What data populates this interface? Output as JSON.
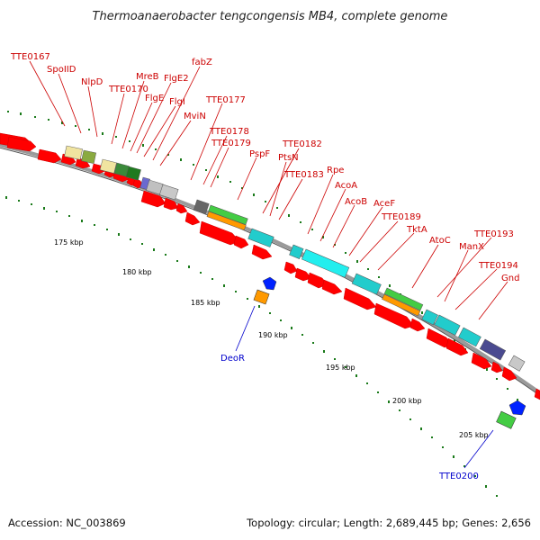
{
  "title": "Thermoanaerobacter tengcongensis MB4, complete genome",
  "footer": {
    "accession": "Accession: NC_003869",
    "topology": "Topology: circular; Length: 2,689,445 bp; Genes: 2,656"
  },
  "colors": {
    "forward": "#ff0000",
    "label_red": "#cc0000",
    "label_blue": "#0000cc",
    "backbone": "#808080",
    "tick": "#1a7a1a"
  },
  "kbp_labels": [
    "175 kbp",
    "180 kbp",
    "185 kbp",
    "190 kbp",
    "195 kbp",
    "200 kbp",
    "205 kbp"
  ],
  "gene_labels": [
    "TTE0167",
    "SpoIID",
    "NlpD",
    "TTE0170",
    "MreB",
    "FlgE2",
    "FlgE",
    "FlgI",
    "fabZ",
    "MviN",
    "TTE0177",
    "TTE0178",
    "TTE0179",
    "PspF",
    "TTE0182",
    "PtsN",
    "TTE0183",
    "Rpe",
    "AcoA",
    "AcoB",
    "AceF",
    "TTE0189",
    "TktA",
    "AtoC",
    "TTE0193",
    "ManX",
    "TTE0194",
    "Gnd",
    "DeoR",
    "TTE0200"
  ]
}
